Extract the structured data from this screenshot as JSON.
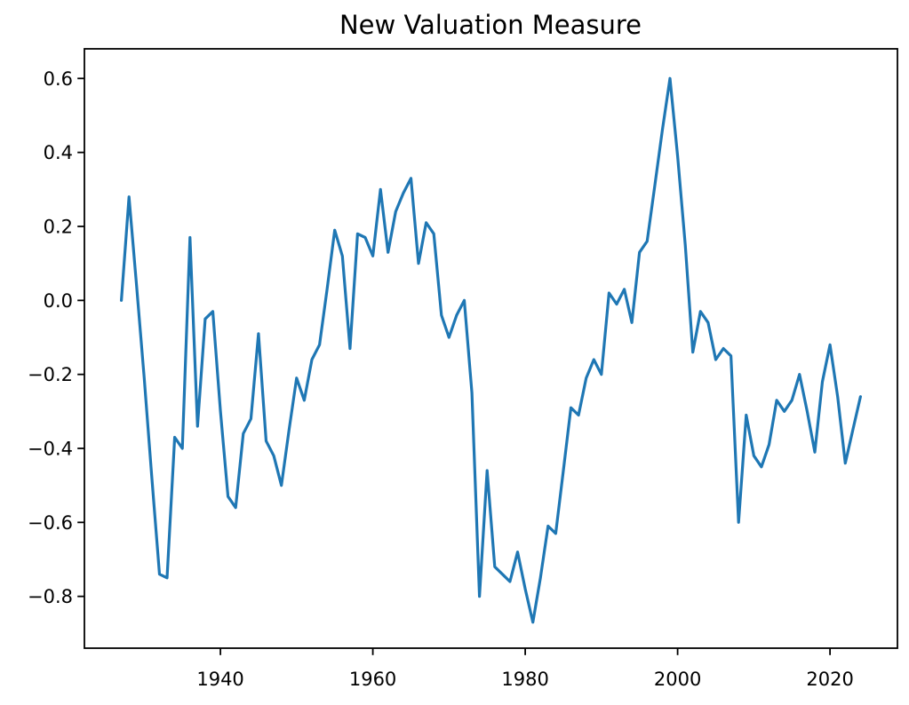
{
  "chart_data": {
    "type": "line",
    "title": "New Valuation Measure",
    "xlabel": "",
    "ylabel": "",
    "grid": false,
    "legend_position": "none",
    "background_color": "#ffffff",
    "line_color": "#1f77b4",
    "xlim": [
      1922.15,
      2028.85
    ],
    "ylim": [
      -0.94,
      0.68
    ],
    "x_ticks": [
      1940,
      1960,
      1980,
      2000,
      2020
    ],
    "x_tick_labels": [
      "1940",
      "1960",
      "1980",
      "2000",
      "2020"
    ],
    "y_ticks": [
      0.6,
      0.4,
      0.2,
      0.0,
      -0.2,
      -0.4,
      -0.6,
      -0.8
    ],
    "y_tick_labels": [
      "0.6",
      "0.4",
      "0.2",
      "0.0",
      "−0.2",
      "−0.4",
      "−0.6",
      "−0.8"
    ],
    "series": [
      {
        "name": "New Valuation Measure",
        "x": [
          1927,
          1928,
          1929,
          1930,
          1931,
          1932,
          1933,
          1934,
          1935,
          1936,
          1937,
          1938,
          1939,
          1940,
          1941,
          1942,
          1943,
          1944,
          1945,
          1946,
          1947,
          1948,
          1949,
          1950,
          1951,
          1952,
          1953,
          1954,
          1955,
          1956,
          1957,
          1958,
          1959,
          1960,
          1961,
          1962,
          1963,
          1964,
          1965,
          1966,
          1967,
          1968,
          1969,
          1970,
          1971,
          1972,
          1973,
          1974,
          1975,
          1976,
          1977,
          1978,
          1979,
          1980,
          1981,
          1982,
          1983,
          1984,
          1985,
          1986,
          1987,
          1988,
          1989,
          1990,
          1991,
          1992,
          1993,
          1994,
          1995,
          1996,
          1997,
          1998,
          1999,
          2000,
          2001,
          2002,
          2003,
          2004,
          2005,
          2006,
          2007,
          2008,
          2009,
          2010,
          2011,
          2012,
          2013,
          2014,
          2015,
          2016,
          2017,
          2018,
          2019,
          2020,
          2021,
          2022,
          2023,
          2024
        ],
        "values": [
          0.0,
          0.28,
          0.04,
          -0.21,
          -0.48,
          -0.74,
          -0.75,
          -0.37,
          -0.4,
          0.17,
          -0.34,
          -0.05,
          -0.03,
          -0.3,
          -0.53,
          -0.56,
          -0.36,
          -0.32,
          -0.09,
          -0.38,
          -0.42,
          -0.5,
          -0.35,
          -0.21,
          -0.27,
          -0.16,
          -0.12,
          0.03,
          0.19,
          0.12,
          -0.13,
          0.18,
          0.17,
          0.12,
          0.3,
          0.13,
          0.24,
          0.29,
          0.33,
          0.1,
          0.21,
          0.18,
          -0.04,
          -0.1,
          -0.04,
          0.0,
          -0.25,
          -0.8,
          -0.46,
          -0.72,
          -0.74,
          -0.76,
          -0.68,
          -0.78,
          -0.87,
          -0.75,
          -0.61,
          -0.63,
          -0.46,
          -0.29,
          -0.31,
          -0.21,
          -0.16,
          -0.2,
          0.02,
          -0.01,
          0.03,
          -0.06,
          0.13,
          0.16,
          0.31,
          0.46,
          0.6,
          0.39,
          0.15,
          -0.14,
          -0.03,
          -0.06,
          -0.16,
          -0.13,
          -0.15,
          -0.6,
          -0.31,
          -0.42,
          -0.45,
          -0.39,
          -0.27,
          -0.3,
          -0.27,
          -0.2,
          -0.3,
          -0.41,
          -0.22,
          -0.12,
          -0.26,
          -0.44,
          -0.35,
          -0.26
        ]
      }
    ]
  }
}
